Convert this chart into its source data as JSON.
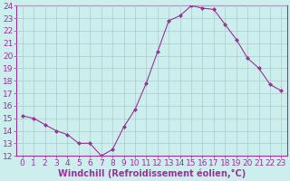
{
  "x": [
    0,
    1,
    2,
    3,
    4,
    5,
    6,
    7,
    8,
    9,
    10,
    11,
    12,
    13,
    14,
    15,
    16,
    17,
    18,
    19,
    20,
    21,
    22,
    23
  ],
  "y": [
    15.2,
    15.0,
    14.5,
    14.0,
    13.7,
    13.0,
    13.0,
    12.0,
    12.5,
    14.3,
    15.7,
    17.8,
    20.3,
    22.8,
    23.2,
    24.0,
    23.8,
    23.7,
    22.5,
    21.3,
    19.8,
    19.0,
    17.7,
    17.2
  ],
  "line_color": "#993399",
  "marker": "D",
  "marker_size": 2,
  "bg_color": "#cceeed",
  "grid_color": "#aacccc",
  "xlabel": "Windchill (Refroidissement éolien,°C)",
  "xlabel_fontsize": 7,
  "xtick_labels": [
    "0",
    "1",
    "2",
    "3",
    "4",
    "5",
    "6",
    "7",
    "8",
    "9",
    "10",
    "11",
    "12",
    "13",
    "14",
    "15",
    "16",
    "17",
    "18",
    "19",
    "20",
    "21",
    "22",
    "23"
  ],
  "ylim": [
    12,
    24
  ],
  "yticks": [
    12,
    13,
    14,
    15,
    16,
    17,
    18,
    19,
    20,
    21,
    22,
    23,
    24
  ],
  "axis_color": "#993399",
  "tick_color": "#993399",
  "tick_fontsize": 6.5,
  "xlabel_bold": true
}
